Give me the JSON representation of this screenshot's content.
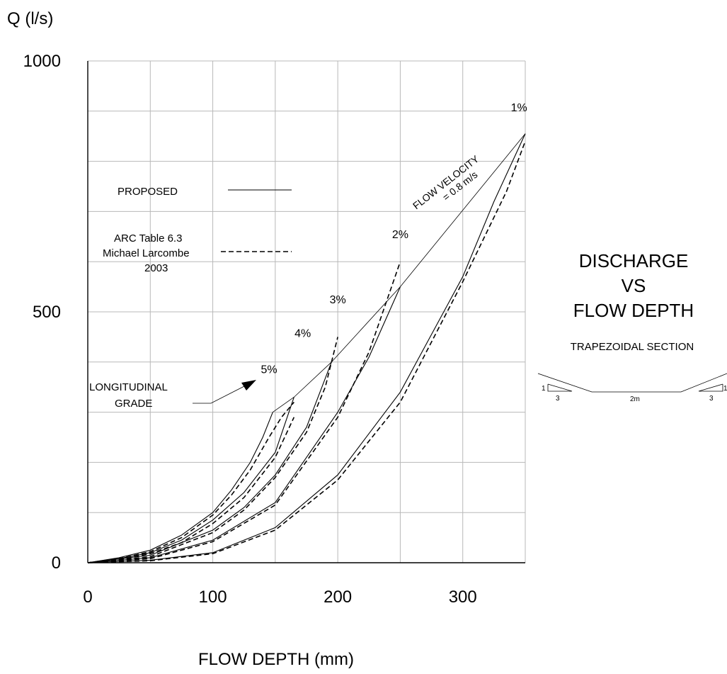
{
  "chart_data": {
    "type": "line",
    "ylabel": "Q (l/s)",
    "xlabel": "FLOW DEPTH (mm)",
    "xlim": [
      0,
      350
    ],
    "ylim": [
      0,
      1000
    ],
    "xticks": [
      0,
      100,
      200,
      300
    ],
    "yticks": [
      0,
      500,
      1000
    ],
    "grid": true,
    "title_lines": [
      "DISCHARGE",
      "VS",
      "FLOW DEPTH"
    ],
    "subtitle": "TRAPEZOIDAL SECTION",
    "section_labels": {
      "side_rise": "1",
      "side_run": "3",
      "base": "2m"
    },
    "legend": {
      "proposed": "PROPOSED",
      "arc_lines": [
        "ARC Table 6.3",
        "Michael Larcombe",
        "2003"
      ]
    },
    "annotations": {
      "longitudinal": [
        "LONGITUDINAL",
        "GRADE"
      ],
      "velocity_line1": "FLOW VELOCITY",
      "velocity_line2": "= 0.8 m/s"
    },
    "velocity_line": {
      "x": [
        148,
        165,
        195,
        250,
        350
      ],
      "y": [
        300,
        330,
        400,
        550,
        855
      ]
    },
    "series": [
      {
        "name": "5%",
        "style": "solid",
        "x": [
          0,
          25,
          50,
          75,
          100,
          115,
          130,
          140,
          148
        ],
        "y": [
          0,
          10,
          25,
          55,
          100,
          145,
          200,
          250,
          300
        ]
      },
      {
        "name": "5%",
        "style": "dashed",
        "x": [
          0,
          25,
          50,
          75,
          100,
          115,
          130,
          145,
          155,
          165
        ],
        "y": [
          0,
          8,
          22,
          50,
          95,
          135,
          185,
          250,
          290,
          320
        ]
      },
      {
        "name": "4%",
        "style": "solid",
        "x": [
          0,
          25,
          50,
          75,
          100,
          125,
          150,
          165
        ],
        "y": [
          0,
          8,
          20,
          45,
          85,
          140,
          220,
          330
        ]
      },
      {
        "name": "4%",
        "style": "dashed",
        "x": [
          0,
          25,
          50,
          75,
          100,
          125,
          150,
          165
        ],
        "y": [
          0,
          6,
          18,
          40,
          78,
          130,
          210,
          290
        ]
      },
      {
        "name": "3%",
        "style": "solid",
        "x": [
          0,
          50,
          100,
          125,
          150,
          175,
          195
        ],
        "y": [
          0,
          15,
          65,
          110,
          175,
          270,
          400
        ]
      },
      {
        "name": "3%",
        "style": "dashed",
        "x": [
          0,
          50,
          100,
          125,
          150,
          175,
          190,
          200
        ],
        "y": [
          0,
          12,
          60,
          105,
          170,
          260,
          350,
          450
        ]
      },
      {
        "name": "2%",
        "style": "solid",
        "x": [
          0,
          50,
          100,
          150,
          200,
          225,
          250
        ],
        "y": [
          0,
          10,
          45,
          120,
          300,
          410,
          550
        ]
      },
      {
        "name": "2%",
        "style": "dashed",
        "x": [
          0,
          50,
          100,
          150,
          200,
          225,
          250
        ],
        "y": [
          0,
          8,
          42,
          115,
          290,
          420,
          600
        ]
      },
      {
        "name": "1%",
        "style": "solid",
        "x": [
          0,
          50,
          100,
          150,
          200,
          250,
          300,
          325,
          350
        ],
        "y": [
          0,
          5,
          20,
          70,
          175,
          340,
          570,
          720,
          855
        ]
      },
      {
        "name": "1%",
        "style": "dashed",
        "x": [
          0,
          50,
          100,
          150,
          200,
          250,
          300,
          335,
          350
        ],
        "y": [
          0,
          4,
          18,
          65,
          165,
          320,
          560,
          740,
          840
        ]
      }
    ],
    "grade_labels": [
      {
        "label": "5%",
        "x": 145,
        "y": 378
      },
      {
        "label": "4%",
        "x": 172,
        "y": 450
      },
      {
        "label": "3%",
        "x": 200,
        "y": 517
      },
      {
        "label": "2%",
        "x": 250,
        "y": 647
      },
      {
        "label": "1%",
        "x": 345,
        "y": 900
      }
    ]
  }
}
